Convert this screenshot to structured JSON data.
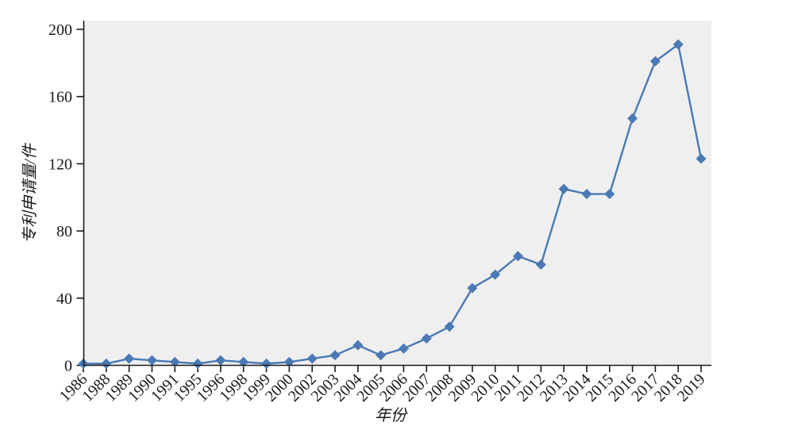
{
  "figure": {
    "background_color": "#ffffff",
    "plot_background_color": "#efefef",
    "axis_color": "#1a1a1a"
  },
  "chart_data": {
    "type": "line",
    "title": "",
    "xlabel": "年份",
    "ylabel": "专利申请量/件",
    "categories": [
      "1986",
      "1988",
      "1989",
      "1990",
      "1991",
      "1995",
      "1996",
      "1998",
      "1999",
      "2000",
      "2002",
      "2003",
      "2004",
      "2005",
      "2006",
      "2007",
      "2008",
      "2009",
      "2010",
      "2011",
      "2012",
      "2013",
      "2014",
      "2015",
      "2016",
      "2017",
      "2018",
      "2019"
    ],
    "values": [
      1,
      1,
      4,
      3,
      2,
      1,
      3,
      2,
      1,
      2,
      4,
      6,
      12,
      6,
      10,
      16,
      23,
      46,
      54,
      65,
      60,
      105,
      102,
      102,
      147,
      181,
      191,
      123
    ],
    "ylim": [
      0,
      200
    ],
    "yticks": [
      0,
      40,
      80,
      120,
      160,
      200
    ],
    "line_color": "#4a79b5",
    "marker": "diamond",
    "grid": false,
    "legend": "none"
  }
}
